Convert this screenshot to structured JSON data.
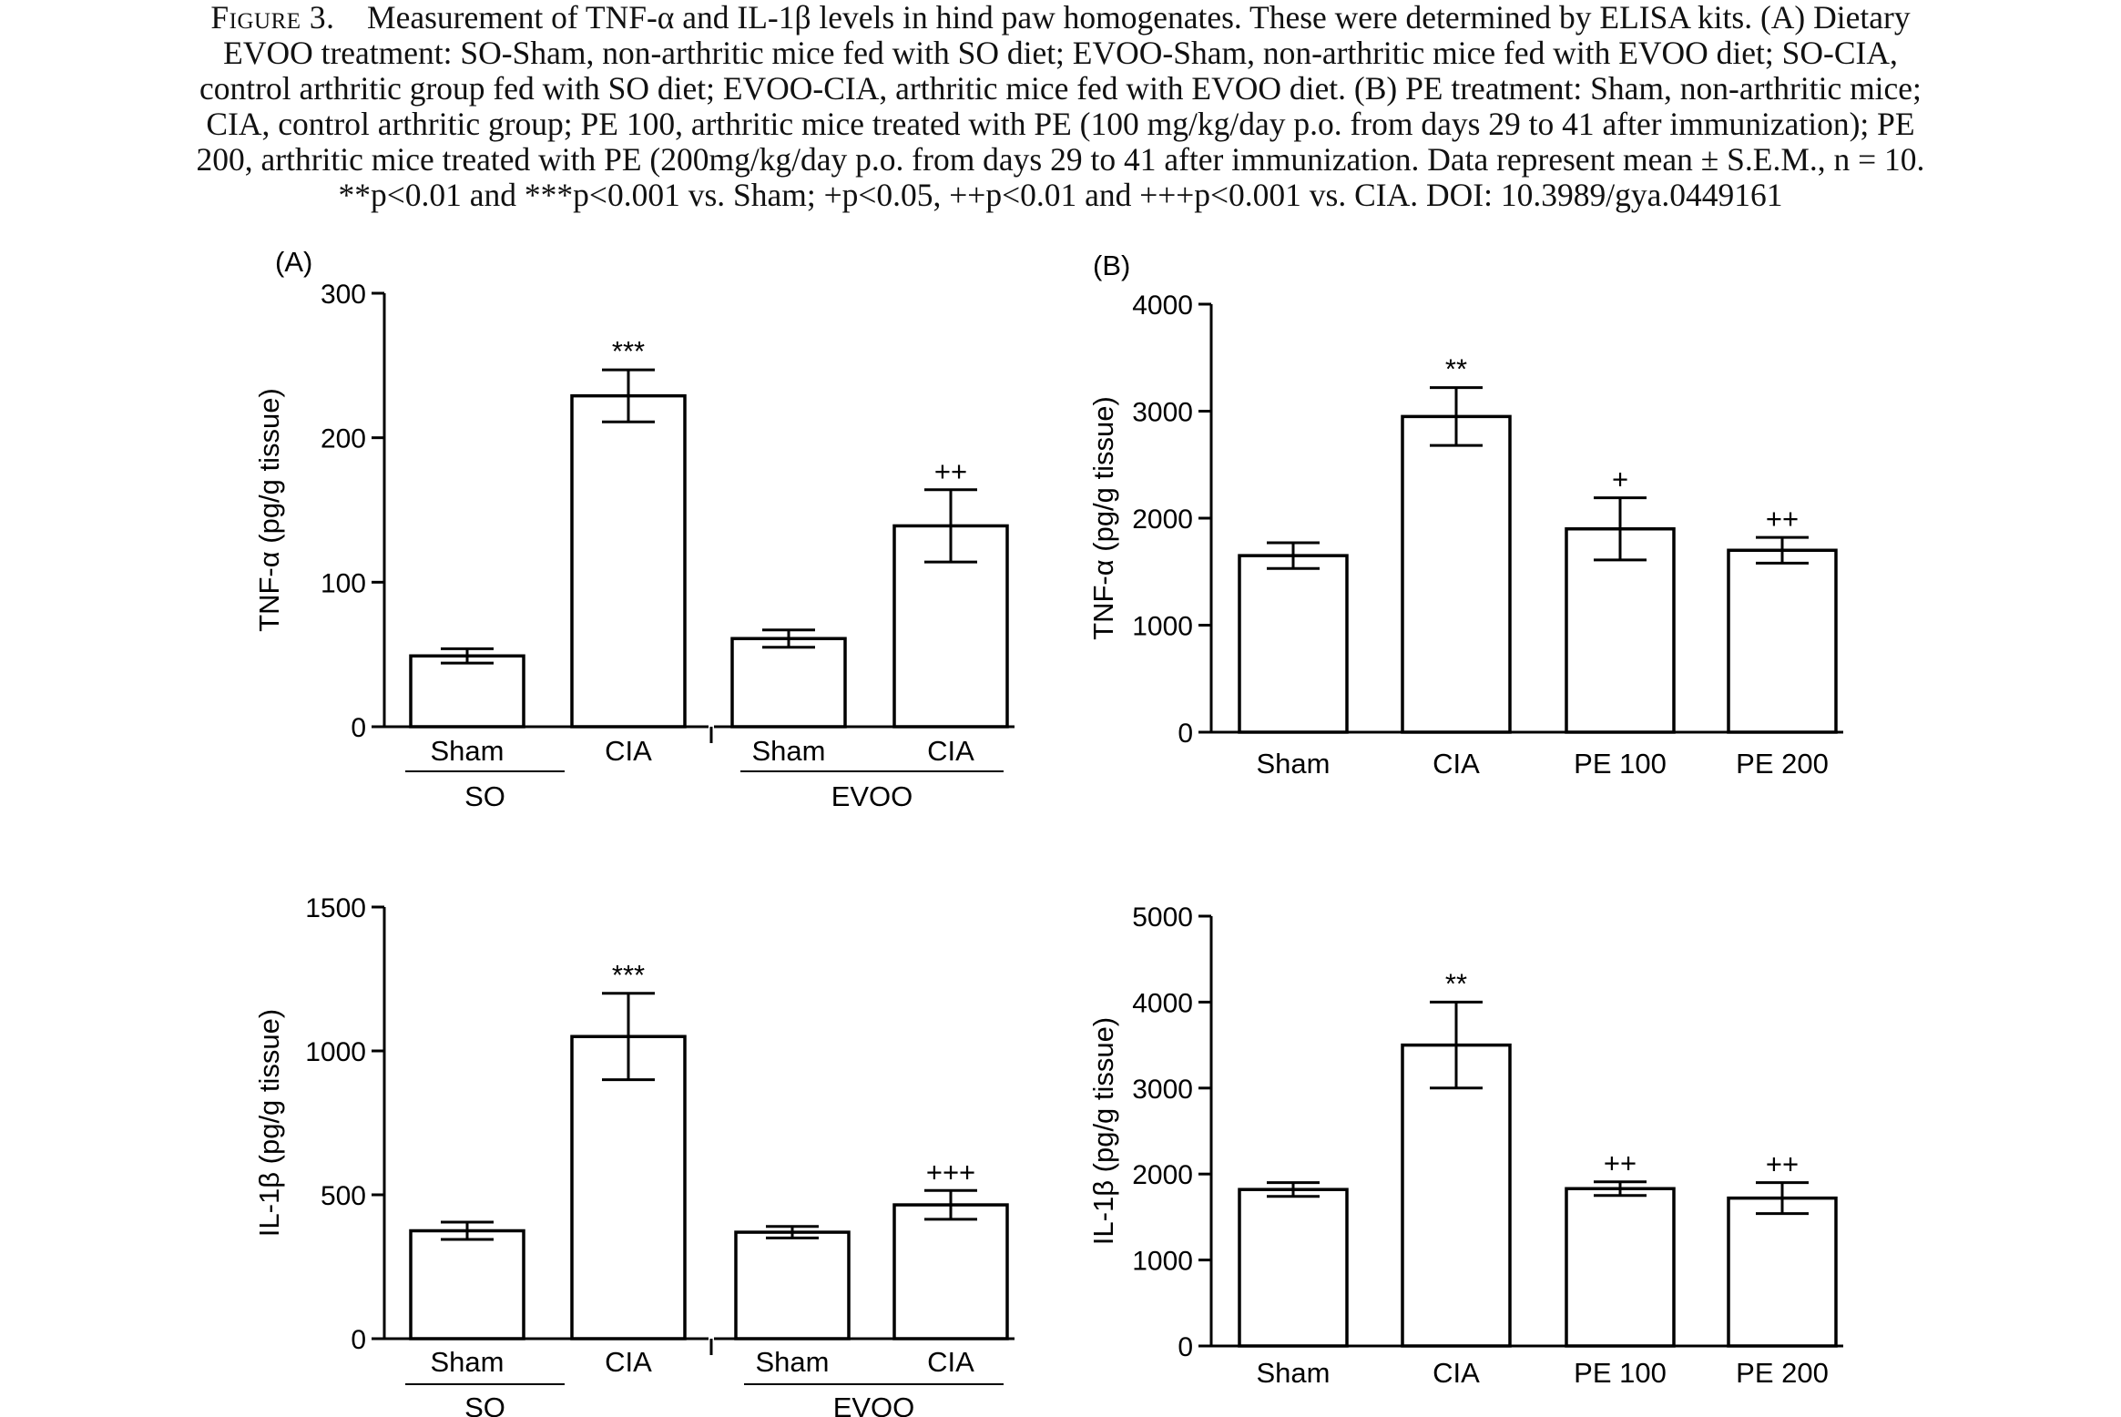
{
  "caption": {
    "label": "Figure 3.",
    "lines": [
      "Measurement of TNF-α and IL-1β levels in hind paw homogenates. These were determined by ELISA kits. (A) Dietary",
      "EVOO treatment: SO-Sham, non-arthritic mice fed with SO diet; EVOO-Sham, non-arthritic mice fed with EVOO diet; SO-CIA,",
      "control arthritic group fed with SO diet; EVOO-CIA, arthritic mice fed with EVOO diet. (B) PE treatment: Sham, non-arthritic mice;",
      "CIA, control arthritic group; PE 100, arthritic mice treated with PE (100 mg/kg/day p.o. from days 29 to 41 after immunization); PE",
      "200, arthritic mice treated with PE (200mg/kg/day p.o. from days 29 to 41 after immunization. Data represent mean ± S.E.M., n = 10.",
      "**p<0.01 and ***p<0.001 vs. Sham; +p<0.05, ++p<0.01 and +++p<0.001 vs. CIA. DOI: 10.3989/gya.0449161"
    ]
  },
  "chart_data": [
    {
      "type": "bar",
      "panel": "(A)",
      "ylabel": "TNF-α (pg/g tissue)",
      "ylim": [
        0,
        300
      ],
      "yticks": [
        0,
        100,
        200,
        300
      ],
      "categories": [
        "Sham",
        "CIA",
        "Sham",
        "CIA"
      ],
      "groups": [
        {
          "label": "SO",
          "indices": [
            0,
            1
          ]
        },
        {
          "label": "EVOO",
          "indices": [
            2,
            3
          ]
        }
      ],
      "values": [
        49,
        229,
        61,
        139
      ],
      "errors": [
        5,
        18,
        6,
        25
      ],
      "annotations": [
        "",
        "***",
        "",
        "++"
      ]
    },
    {
      "type": "bar",
      "panel": "(B)",
      "ylabel": "TNF-α (pg/g tissue)",
      "ylim": [
        0,
        4000
      ],
      "yticks": [
        0,
        1000,
        2000,
        3000,
        4000
      ],
      "categories": [
        "Sham",
        "CIA",
        "PE 100",
        "PE 200"
      ],
      "values": [
        1650,
        2950,
        1900,
        1700
      ],
      "errors": [
        120,
        270,
        290,
        120
      ],
      "annotations": [
        "",
        "**",
        "+",
        "++"
      ]
    },
    {
      "type": "bar",
      "panel": "",
      "ylabel": "IL-1β (pg/g tissue)",
      "ylim": [
        0,
        1500
      ],
      "yticks": [
        0,
        500,
        1000,
        1500
      ],
      "categories": [
        "Sham",
        "CIA",
        "Sham",
        "CIA"
      ],
      "groups": [
        {
          "label": "SO",
          "indices": [
            0,
            1
          ]
        },
        {
          "label": "EVOO",
          "indices": [
            2,
            3
          ]
        }
      ],
      "values": [
        375,
        1050,
        370,
        465
      ],
      "errors": [
        30,
        150,
        20,
        50
      ],
      "annotations": [
        "",
        "***",
        "",
        "+++"
      ]
    },
    {
      "type": "bar",
      "panel": "",
      "ylabel": "IL-1β (pg/g tissue)",
      "ylim": [
        0,
        5000
      ],
      "yticks": [
        0,
        1000,
        2000,
        3000,
        4000,
        5000
      ],
      "categories": [
        "Sham",
        "CIA",
        "PE 100",
        "PE 200"
      ],
      "values": [
        1820,
        3500,
        1830,
        1720
      ],
      "errors": [
        80,
        500,
        80,
        180
      ],
      "annotations": [
        "",
        "**",
        "++",
        "++"
      ]
    }
  ]
}
